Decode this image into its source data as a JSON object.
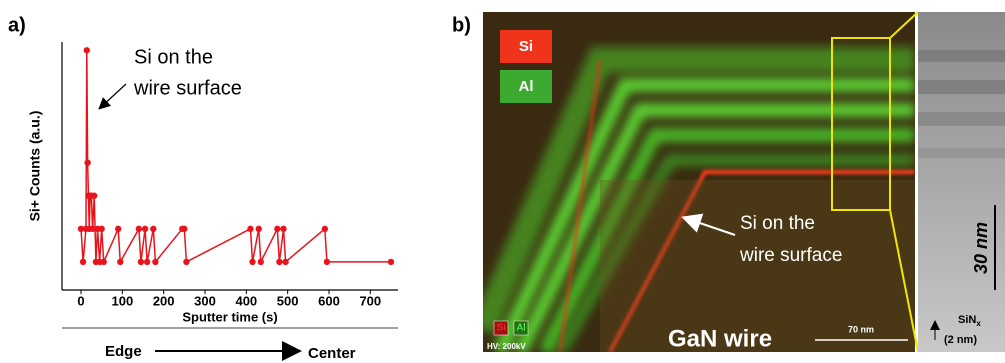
{
  "chart_data": {
    "type": "line",
    "panel_label": "a)",
    "x_label": "Sputter time (s)",
    "y_label": "Si+ Counts (a.u.)",
    "annotation": [
      "Si on the",
      "wire surface"
    ],
    "direction": {
      "from": "Edge",
      "to": "Center"
    },
    "x": [
      0,
      5,
      12,
      14,
      16,
      18,
      20,
      22,
      25,
      28,
      32,
      36,
      40,
      45,
      50,
      55,
      90,
      95,
      140,
      145,
      155,
      160,
      175,
      180,
      245,
      250,
      255,
      410,
      415,
      430,
      435,
      475,
      480,
      490,
      495,
      590,
      595,
      750
    ],
    "series": [
      {
        "name": "Si+",
        "color": "#e8141c",
        "values": [
          1,
          0,
          1,
          6.4,
          3,
          2,
          1,
          2,
          2,
          1,
          2,
          0,
          1,
          0,
          1,
          0,
          1,
          0,
          1,
          0,
          1,
          0,
          1,
          0,
          1,
          1,
          0,
          1,
          0,
          1,
          0,
          1,
          0,
          1,
          0,
          1,
          0,
          0
        ]
      }
    ],
    "xlim": [
      -46,
      767
    ],
    "xticks": [
      0,
      100,
      200,
      300,
      400,
      500,
      600,
      700
    ],
    "ylim": [
      -0.85,
      6.65
    ]
  },
  "image": {
    "panel_label": "b)",
    "legend": [
      "Si",
      "Al"
    ],
    "annotation": [
      "Si on the",
      "wire surface"
    ],
    "sample_label": "GaN wire",
    "scale_bar": "70 nm",
    "voltage": "HV: 200kV",
    "mini_legend": [
      "Si",
      "Al"
    ],
    "inset_scale": "30 nm",
    "inset_layer": {
      "name": "SiN",
      "subscript": "x",
      "thickness": "(2 nm)"
    }
  }
}
